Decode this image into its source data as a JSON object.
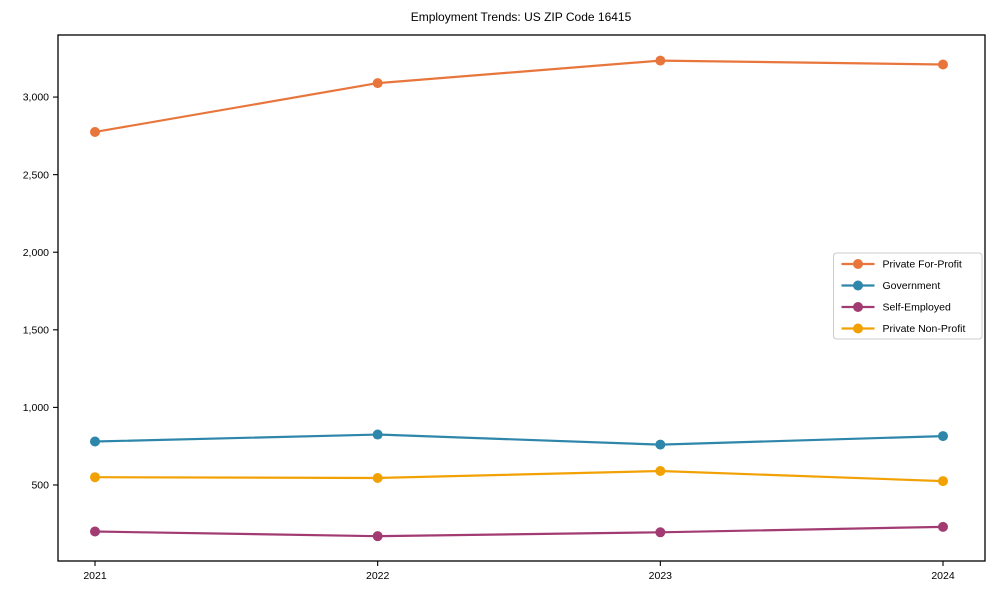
{
  "chart_data": {
    "type": "line",
    "title": "Employment Trends: US ZIP Code 16415",
    "xlabel": "",
    "ylabel": "",
    "categories": [
      "2021",
      "2022",
      "2023",
      "2024"
    ],
    "series": [
      {
        "name": "Private For-Profit",
        "color": "#E8763C",
        "values": [
          2775,
          3090,
          3235,
          3210
        ]
      },
      {
        "name": "Government",
        "color": "#2E86AB",
        "values": [
          780,
          825,
          760,
          815
        ]
      },
      {
        "name": "Self-Employed",
        "color": "#A23B72",
        "values": [
          200,
          170,
          195,
          230
        ]
      },
      {
        "name": "Private Non-Profit",
        "color": "#F2A104",
        "values": [
          550,
          545,
          590,
          525
        ]
      }
    ],
    "y_ticks": [
      {
        "value": 500,
        "label": "500"
      },
      {
        "value": 1000,
        "label": "1,000"
      },
      {
        "value": 1500,
        "label": "1,500"
      },
      {
        "value": 2000,
        "label": "2,000"
      },
      {
        "value": 2500,
        "label": "2,500"
      },
      {
        "value": 3000,
        "label": "3,000"
      }
    ],
    "ylim": [
      10,
      3400
    ],
    "grid": false,
    "legend_position": "center right",
    "axis_color": "#000000",
    "legend_border_color": "#cccccc",
    "background_color": "#ffffff"
  }
}
